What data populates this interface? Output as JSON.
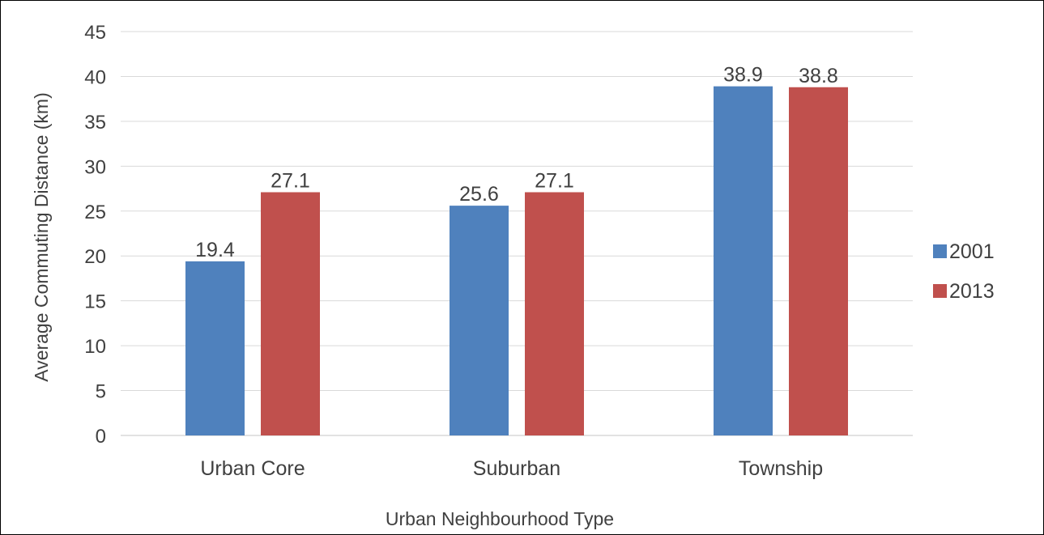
{
  "chart_data": {
    "type": "bar",
    "title": "",
    "xlabel": "Urban Neighbourhood Type",
    "ylabel": "Average Commuting Distance (km)",
    "categories": [
      "Urban Core",
      "Suburban",
      "Township"
    ],
    "series": [
      {
        "name": "2001",
        "values": [
          19.4,
          25.6,
          38.9
        ],
        "color": "#4f81bd"
      },
      {
        "name": "2013",
        "values": [
          27.1,
          27.1,
          38.8
        ],
        "color": "#c0504d"
      }
    ],
    "ylim": [
      0,
      45
    ],
    "yticks": [
      0,
      5,
      10,
      15,
      20,
      25,
      30,
      35,
      40,
      45
    ],
    "grid": true,
    "legend_position": "right",
    "data_labels": true
  }
}
